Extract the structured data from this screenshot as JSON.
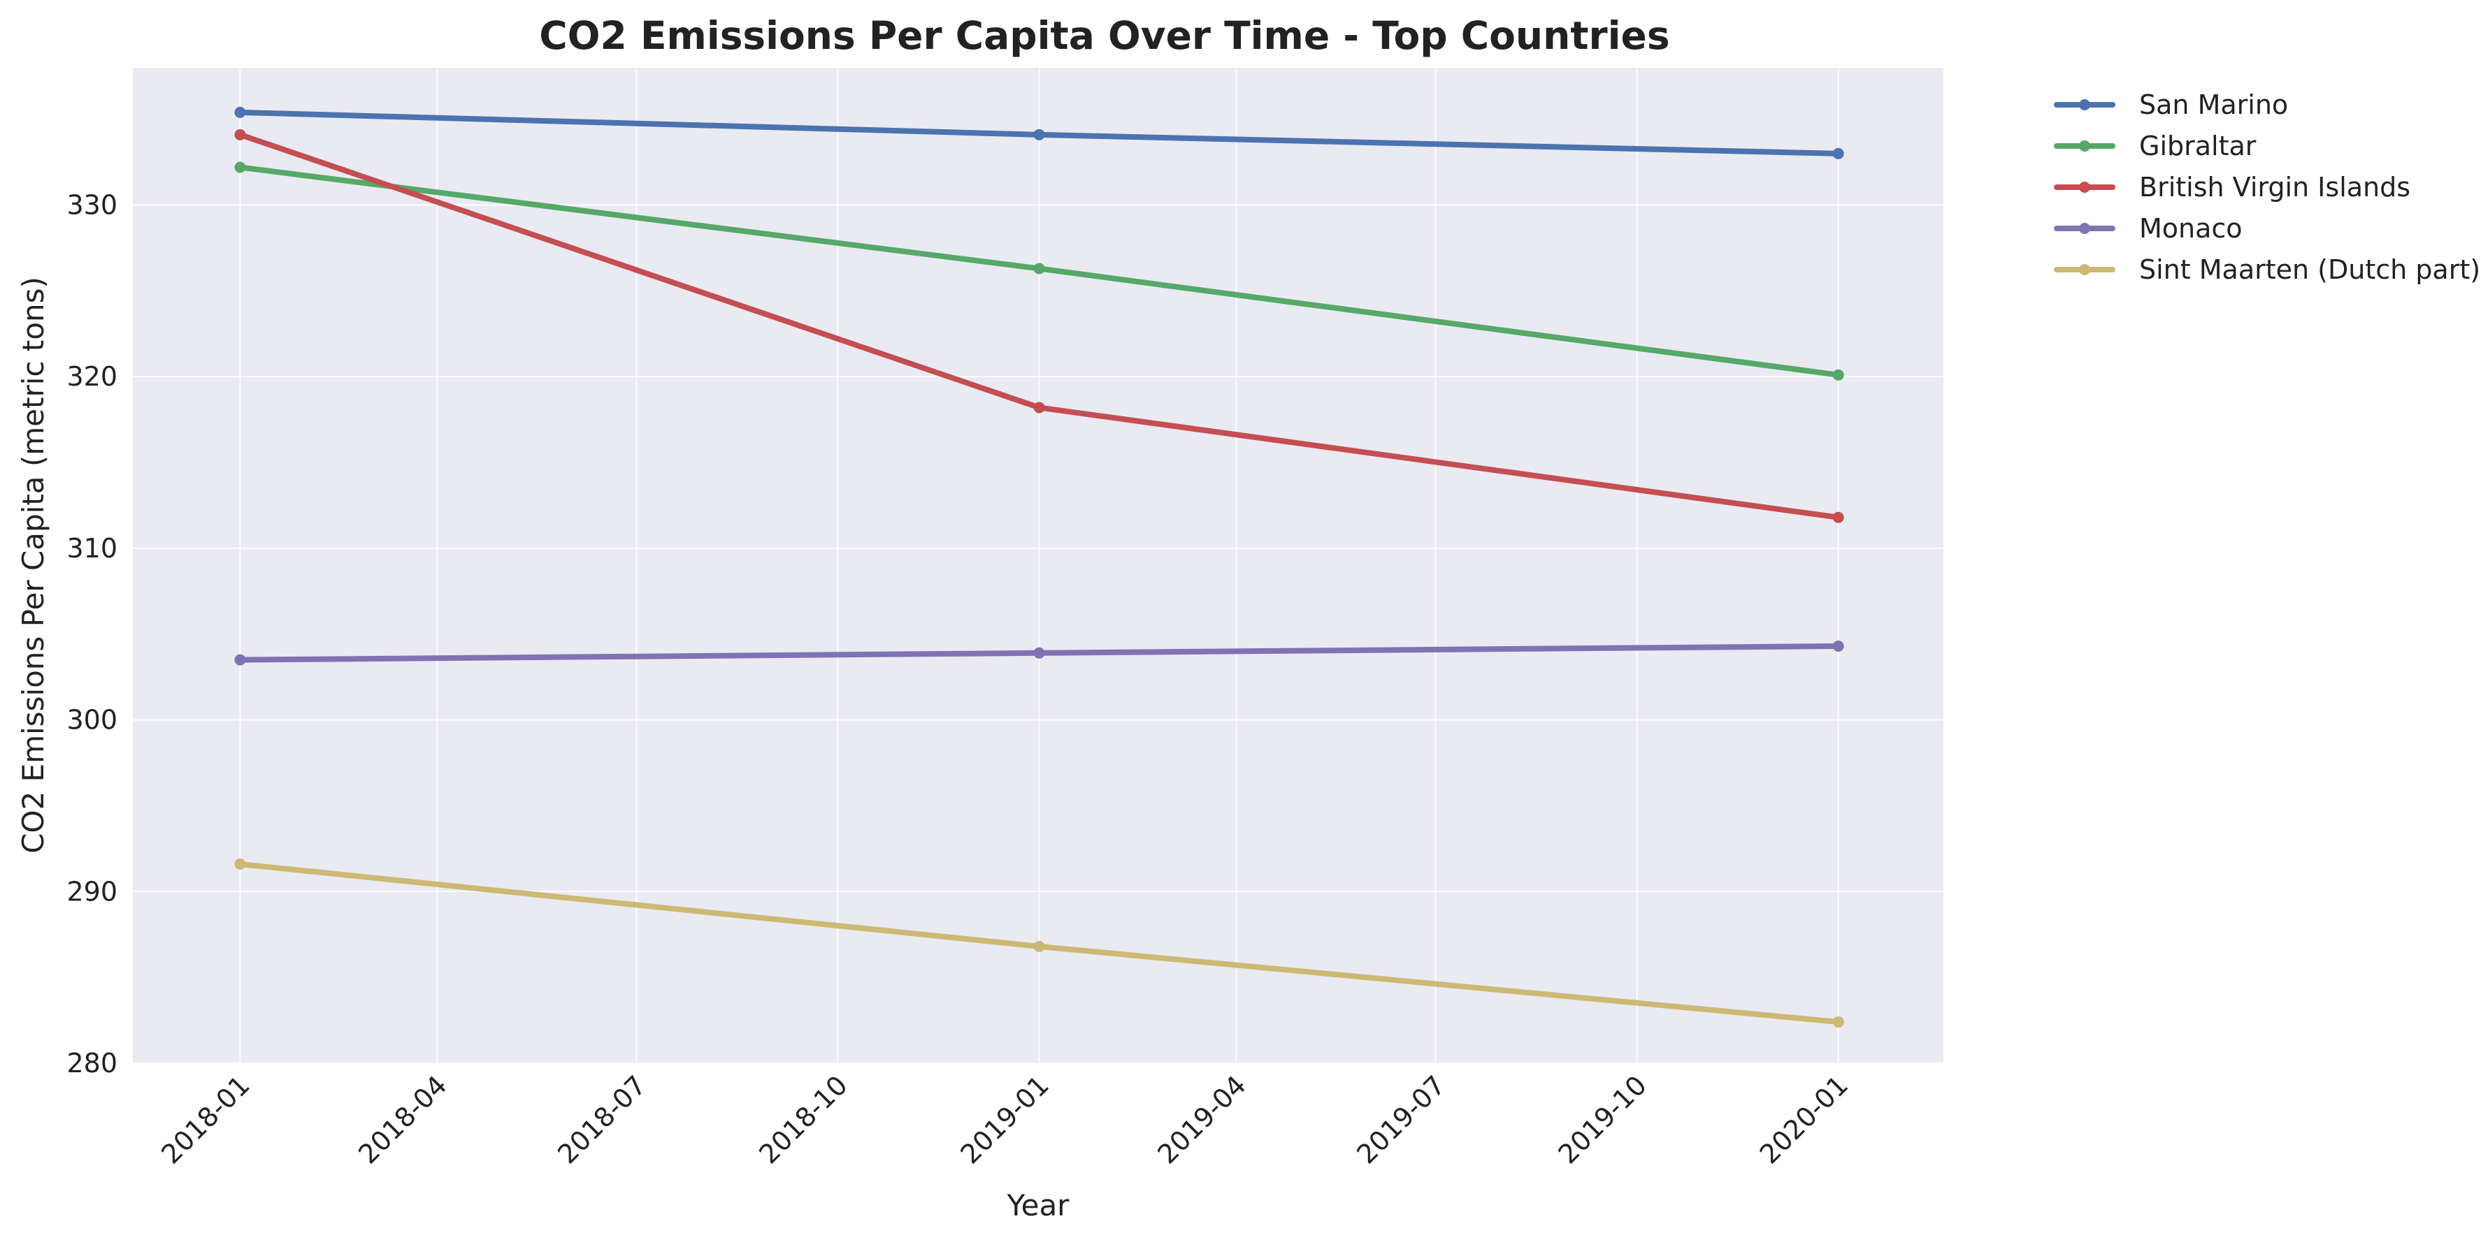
{
  "chart_data": {
    "type": "line",
    "title": "CO2 Emissions Per Capita Over Time - Top Countries",
    "xlabel": "Year",
    "ylabel": "CO2 Emissions Per Capita (metric tons)",
    "x": [
      "2018-01-01",
      "2019-01-01",
      "2020-01-01"
    ],
    "xlim": [
      "2017-11-13",
      "2020-02-18"
    ],
    "ylim": [
      280,
      338
    ],
    "xticks": [
      "2018-01",
      "2018-04",
      "2018-07",
      "2018-10",
      "2019-01",
      "2019-04",
      "2019-07",
      "2019-10",
      "2020-01"
    ],
    "yticks": [
      280,
      290,
      300,
      310,
      320,
      330
    ],
    "grid": true,
    "legend_position": "outside-top-right",
    "series": [
      {
        "name": "San Marino",
        "color": "#4c72b0",
        "values": [
          335.4,
          334.1,
          333.0
        ]
      },
      {
        "name": "Gibraltar",
        "color": "#55a868",
        "values": [
          332.2,
          326.3,
          320.1
        ]
      },
      {
        "name": "British Virgin Islands",
        "color": "#c44e52",
        "values": [
          334.1,
          318.2,
          311.8
        ]
      },
      {
        "name": "Monaco",
        "color": "#8172b3",
        "values": [
          303.5,
          303.9,
          304.3
        ]
      },
      {
        "name": "Sint Maarten (Dutch part)",
        "color": "#ccb974",
        "values": [
          291.6,
          286.8,
          282.4
        ]
      }
    ]
  }
}
